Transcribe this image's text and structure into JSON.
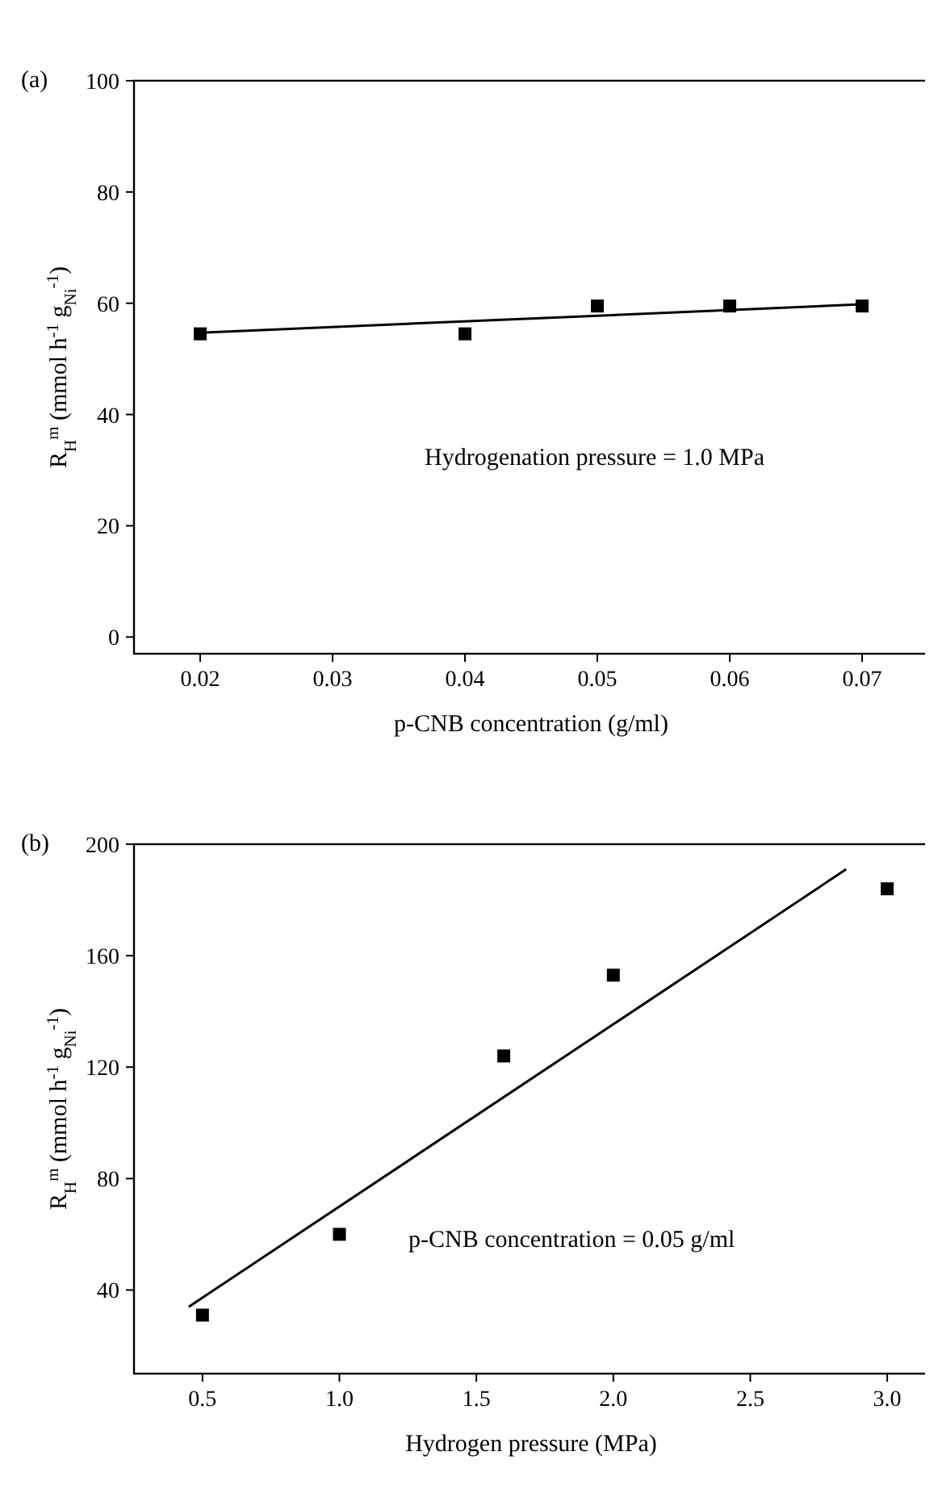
{
  "chart_data": [
    {
      "type": "scatter",
      "xlabel": "p-CNB concentration (g/ml)",
      "ylabel": "R$_{H}$$^{m}$ (mmol h$^{-1}$ g$_{Ni}$$^{-1}$)",
      "annotations": [
        "(a)",
        "Hydrogenation pressure = 1.0 MPa"
      ],
      "xlim": [
        0.015,
        0.075
      ],
      "xticks": [
        0.02,
        0.03,
        0.04,
        0.05,
        0.06,
        0.07
      ],
      "ylim": [
        -3,
        100
      ],
      "yticks": [
        0,
        20,
        40,
        60,
        80,
        100
      ],
      "grid": false,
      "series": [
        {
          "marker": "square",
          "color": "#000000",
          "x": [
            0.02,
            0.04,
            0.05,
            0.06,
            0.07
          ],
          "values": [
            54.5,
            54.5,
            59.5,
            59.5,
            59.5
          ]
        },
        {
          "type": "line",
          "marker": "none",
          "line_style": "solid",
          "color": "#000000",
          "x": [
            0.02,
            0.07
          ],
          "values": [
            54.7,
            59.8
          ]
        }
      ]
    },
    {
      "type": "scatter",
      "xlabel": "Hydrogen pressure (MPa)",
      "ylabel": "R$_{H}$$^{m}$ (mmol h$^{-1}$ g$_{Ni}$$^{-1}$)",
      "annotations": [
        "(b)",
        "p-CNB concentration = 0.05 g/ml"
      ],
      "xlim": [
        0.25,
        3.15
      ],
      "xticks": [
        {
          "value": 0.5,
          "label": "0.5"
        },
        {
          "value": 1,
          "label": "1.0"
        },
        1.5,
        {
          "value": 2,
          "label": "2.0"
        },
        2.5,
        {
          "value": 3,
          "label": "3.0"
        }
      ],
      "ylim": [
        10,
        200
      ],
      "yticks": [
        40,
        80,
        120,
        160,
        200
      ],
      "grid": false,
      "series": [
        {
          "marker": "square",
          "color": "#000000",
          "x": [
            0.5,
            1,
            1.6,
            2,
            3
          ],
          "values": [
            31,
            60,
            124,
            153,
            184
          ]
        },
        {
          "type": "line",
          "marker": "none",
          "line_style": "solid",
          "color": "#000000",
          "x": [
            0.45,
            2.85
          ],
          "values": [
            34,
            191
          ]
        }
      ]
    }
  ]
}
